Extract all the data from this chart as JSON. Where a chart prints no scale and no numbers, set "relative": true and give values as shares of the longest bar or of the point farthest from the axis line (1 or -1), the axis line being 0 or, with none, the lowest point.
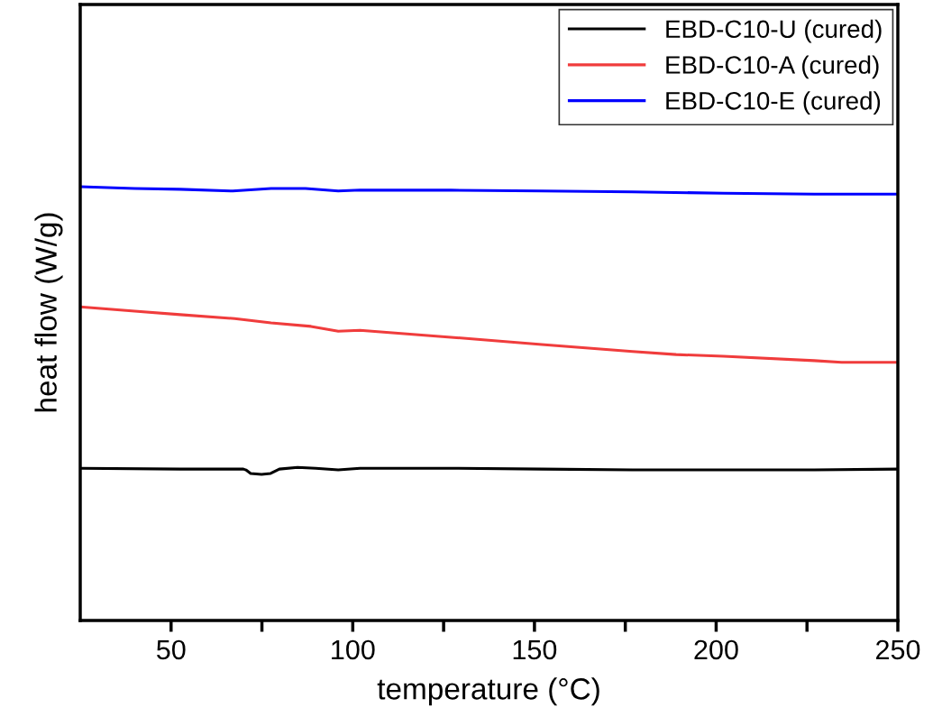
{
  "chart_data": {
    "type": "line",
    "relative": true,
    "xlabel": "temperature (°C)",
    "ylabel": "heat flow (W/g)",
    "xlim": [
      25,
      250
    ],
    "xticks": [
      50,
      {
        "value": 75,
        "label": null
      },
      100,
      {
        "value": 125,
        "label": null
      },
      150,
      {
        "value": 175,
        "label": null
      },
      200,
      {
        "value": 225,
        "label": null
      },
      250
    ],
    "legend": "top right",
    "grid": false,
    "marker": "none",
    "line_style": "solid",
    "series": [
      {
        "name": "EBD-C10-U (cured)",
        "color": "#000000",
        "x": [
          25,
          52.5,
          69.9,
          70.6,
          71.9,
          74.9,
          77.4,
          79.8,
          84.8,
          89.8,
          96,
          102,
          127,
          152,
          177,
          227,
          250
        ],
        "values": [
          0.351,
          0.349,
          0.349,
          0.347,
          0.339,
          0.337,
          0.339,
          0.349,
          0.353,
          0.351,
          0.347,
          0.351,
          0.351,
          0.349,
          0.347,
          0.347,
          0.349
        ]
      },
      {
        "name": "EBD-C10-A (cured)",
        "color": "#f03c3c",
        "x": [
          25,
          40,
          52.5,
          67.5,
          77.5,
          88.5,
          96,
          102,
          127,
          152,
          177,
          189,
          202,
          227,
          234.5,
          250
        ],
        "values": [
          0.723,
          0.713,
          0.705,
          0.696,
          0.686,
          0.678,
          0.667,
          0.669,
          0.653,
          0.636,
          0.62,
          0.613,
          0.609,
          0.599,
          0.595,
          0.595
        ]
      },
      {
        "name": "EBD-C10-E (cured)",
        "color": "#0000ff",
        "x": [
          25,
          40,
          52.5,
          67,
          77.5,
          87,
          96,
          102,
          127,
          152,
          177,
          202,
          227,
          250
        ],
        "values": [
          1.0,
          0.996,
          0.994,
          0.99,
          0.996,
          0.996,
          0.99,
          0.992,
          0.992,
          0.99,
          0.988,
          0.985,
          0.983,
          0.983
        ]
      }
    ]
  }
}
